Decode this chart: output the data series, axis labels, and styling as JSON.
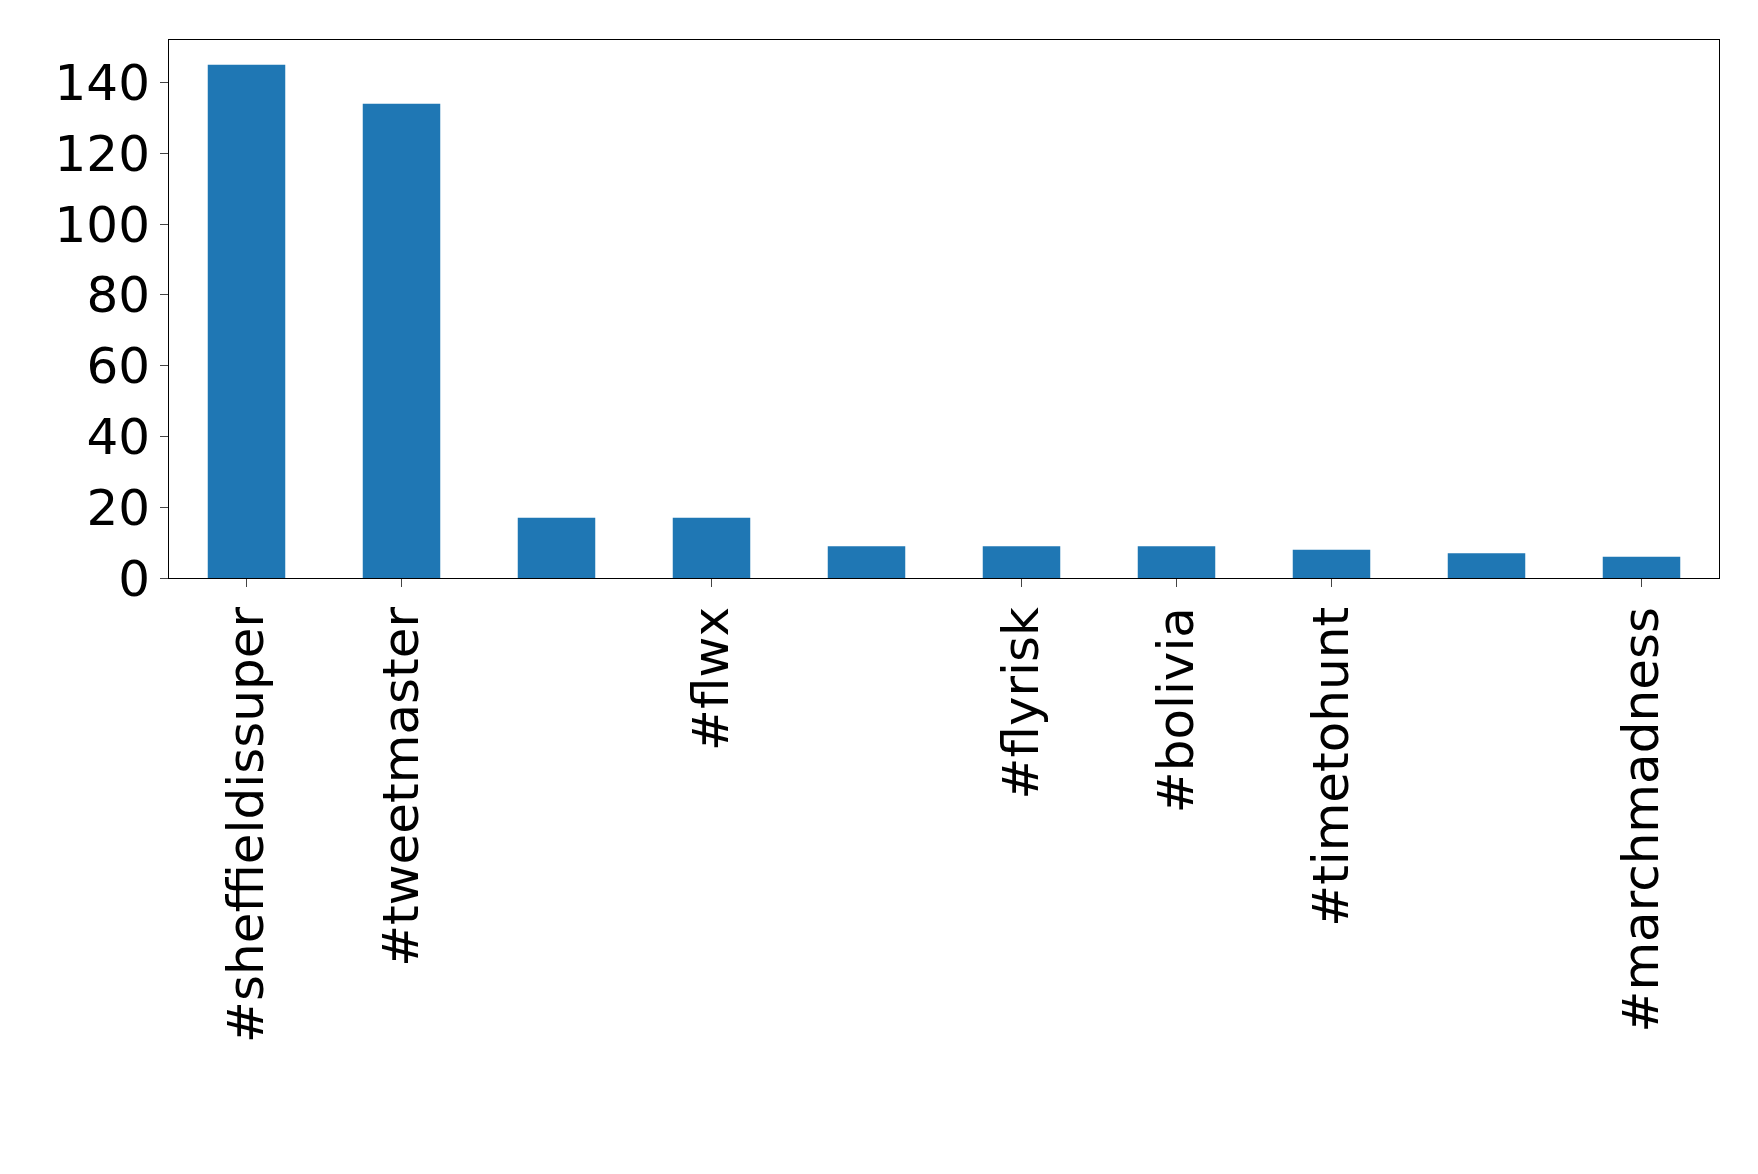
{
  "chart_data": {
    "type": "bar",
    "categories": [
      "#sheffieldissuper",
      "#tweetmaster",
      null,
      "#flwx",
      null,
      "#flyrisk",
      "#bolivia",
      "#timetohunt",
      null,
      "#marchmadness"
    ],
    "values": [
      145,
      134,
      17,
      17,
      9,
      9,
      9,
      8,
      7,
      6
    ],
    "color": "#1f77b4",
    "ylim": [
      0,
      152
    ],
    "yticks": [
      0,
      20,
      40,
      60,
      80,
      100,
      120,
      140
    ],
    "grid": false,
    "legend": false
  }
}
